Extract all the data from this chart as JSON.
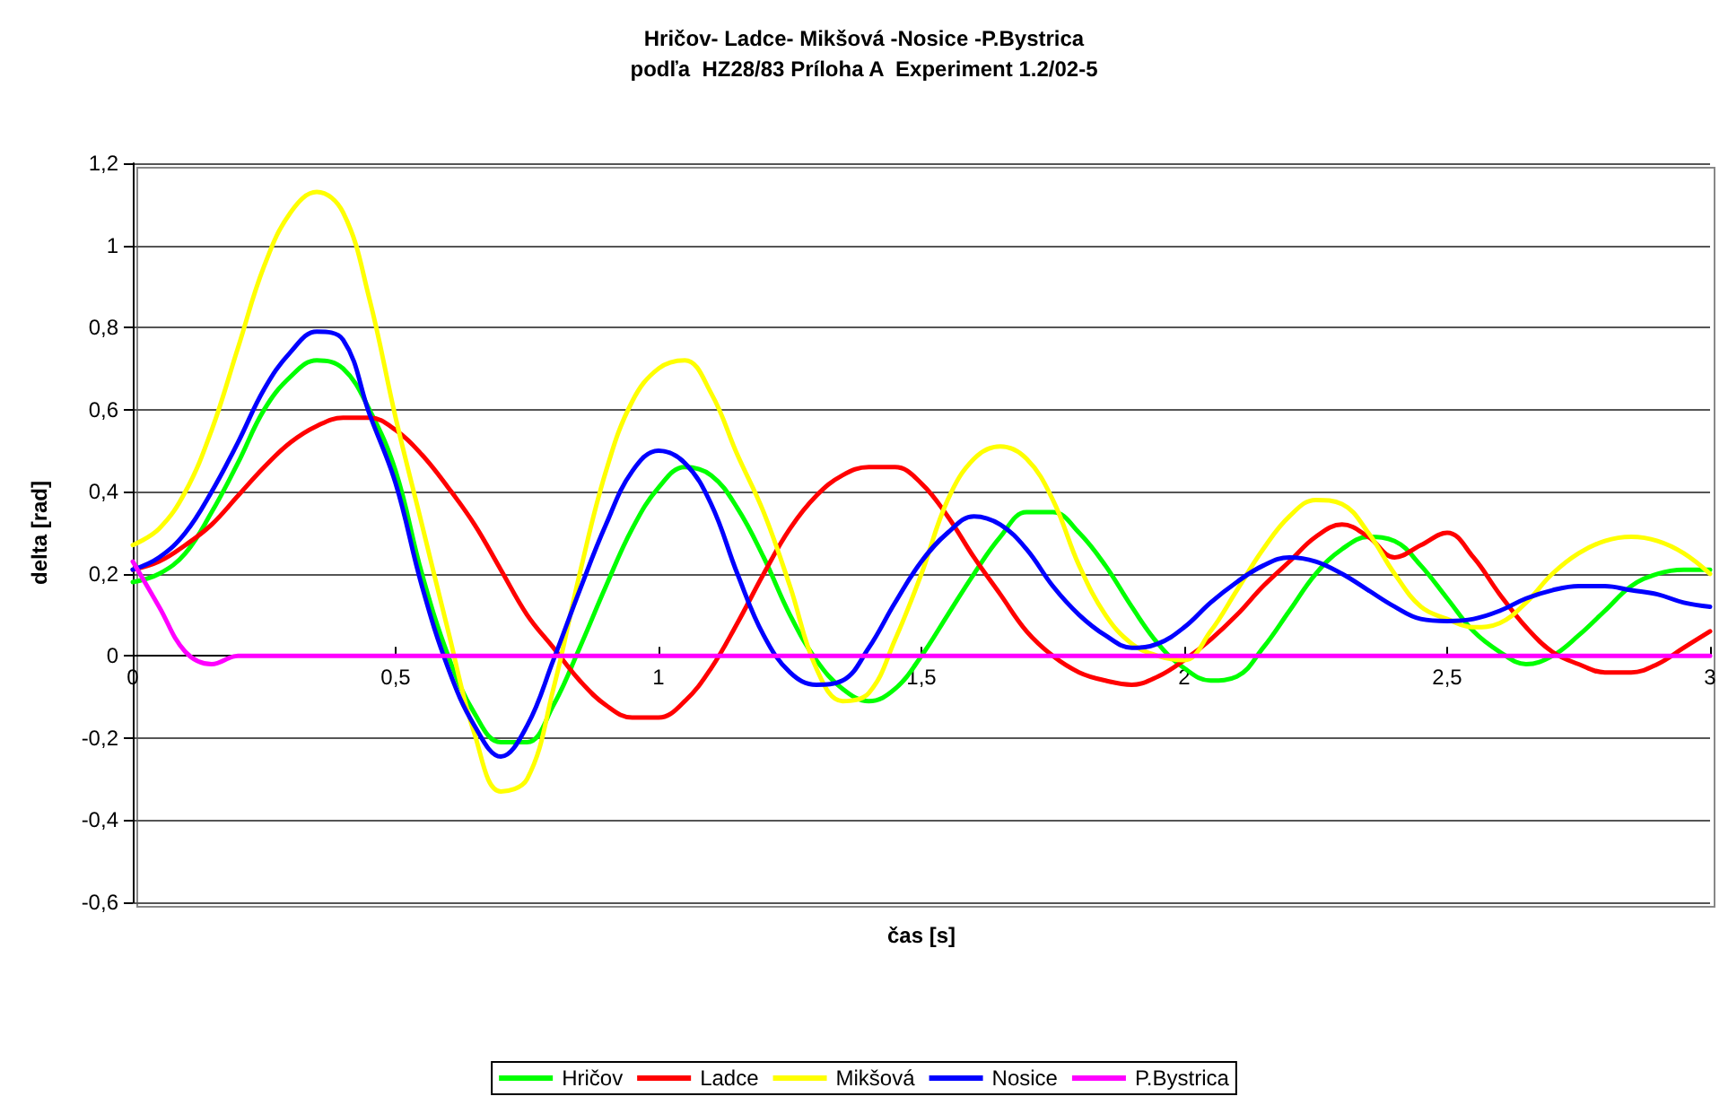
{
  "chart_data": {
    "type": "line",
    "title": "Hričov- Ladce- Mikšová -Nosice -P.Bystrica\npodľa  HZ28/83 Príloha A  Experiment 1.2/02-5",
    "xlabel": "čas [s]",
    "ylabel": "delta [rad]",
    "x": [
      0,
      0.05,
      0.1,
      0.15,
      0.2,
      0.25,
      0.3,
      0.35,
      0.4,
      0.45,
      0.5,
      0.55,
      0.6,
      0.65,
      0.7,
      0.75,
      0.8,
      0.85,
      0.9,
      0.95,
      1,
      1.05,
      1.1,
      1.15,
      1.2,
      1.25,
      1.3,
      1.35,
      1.4,
      1.45,
      1.5,
      1.55,
      1.6,
      1.65,
      1.7,
      1.75,
      1.8,
      1.85,
      1.9,
      1.95,
      2,
      2.05,
      2.1,
      2.15,
      2.2,
      2.25,
      2.3,
      2.35,
      2.4,
      2.45,
      2.5,
      2.55,
      2.6,
      2.65,
      2.7,
      2.75,
      2.8,
      2.85,
      2.9,
      2.95,
      3
    ],
    "series": [
      {
        "name": "Hričov",
        "color": "#00ff00",
        "values": [
          0.18,
          0.2,
          0.25,
          0.35,
          0.47,
          0.6,
          0.68,
          0.72,
          0.7,
          0.6,
          0.45,
          0.2,
          0.0,
          -0.14,
          -0.21,
          -0.21,
          -0.12,
          0.02,
          0.17,
          0.31,
          0.41,
          0.46,
          0.44,
          0.36,
          0.24,
          0.1,
          -0.01,
          -0.08,
          -0.11,
          -0.08,
          0.0,
          0.1,
          0.2,
          0.29,
          0.35,
          0.35,
          0.3,
          0.22,
          0.12,
          0.03,
          -0.03,
          -0.06,
          -0.05,
          0.02,
          0.11,
          0.2,
          0.26,
          0.29,
          0.28,
          0.22,
          0.14,
          0.06,
          0.01,
          -0.02,
          0.0,
          0.05,
          0.11,
          0.17,
          0.2,
          0.21,
          0.21
        ]
      },
      {
        "name": "Ladce",
        "color": "#ff0000",
        "values": [
          0.21,
          0.23,
          0.27,
          0.32,
          0.39,
          0.46,
          0.52,
          0.56,
          0.58,
          0.58,
          0.55,
          0.49,
          0.41,
          0.32,
          0.21,
          0.1,
          0.02,
          -0.06,
          -0.12,
          -0.15,
          -0.15,
          -0.11,
          -0.03,
          0.08,
          0.2,
          0.31,
          0.39,
          0.44,
          0.46,
          0.46,
          0.42,
          0.34,
          0.24,
          0.15,
          0.06,
          0.0,
          -0.04,
          -0.06,
          -0.07,
          -0.05,
          -0.01,
          0.04,
          0.1,
          0.17,
          0.23,
          0.29,
          0.32,
          0.29,
          0.24,
          0.27,
          0.3,
          0.24,
          0.15,
          0.07,
          0.01,
          -0.02,
          -0.04,
          -0.04,
          -0.02,
          0.02,
          0.06
        ]
      },
      {
        "name": "Mikšová",
        "color": "#ffff00",
        "values": [
          0.27,
          0.31,
          0.4,
          0.55,
          0.75,
          0.95,
          1.08,
          1.13,
          1.08,
          0.87,
          0.58,
          0.32,
          0.06,
          -0.19,
          -0.33,
          -0.3,
          -0.08,
          0.2,
          0.45,
          0.62,
          0.7,
          0.72,
          0.64,
          0.49,
          0.35,
          0.17,
          -0.03,
          -0.11,
          -0.09,
          0.04,
          0.2,
          0.38,
          0.48,
          0.51,
          0.48,
          0.38,
          0.22,
          0.1,
          0.03,
          0.0,
          -0.01,
          0.06,
          0.16,
          0.26,
          0.34,
          0.38,
          0.37,
          0.3,
          0.2,
          0.12,
          0.09,
          0.07,
          0.08,
          0.13,
          0.2,
          0.25,
          0.28,
          0.29,
          0.28,
          0.25,
          0.2
        ]
      },
      {
        "name": "Nosice",
        "color": "#0000ff",
        "values": [
          0.21,
          0.24,
          0.3,
          0.4,
          0.52,
          0.65,
          0.74,
          0.79,
          0.77,
          0.59,
          0.42,
          0.17,
          -0.03,
          -0.17,
          -0.245,
          -0.17,
          -0.01,
          0.16,
          0.32,
          0.45,
          0.5,
          0.47,
          0.37,
          0.2,
          0.05,
          -0.04,
          -0.07,
          -0.06,
          0.02,
          0.13,
          0.23,
          0.3,
          0.34,
          0.32,
          0.26,
          0.17,
          0.1,
          0.05,
          0.02,
          0.03,
          0.07,
          0.13,
          0.18,
          0.22,
          0.24,
          0.23,
          0.2,
          0.16,
          0.12,
          0.09,
          0.085,
          0.09,
          0.11,
          0.14,
          0.16,
          0.17,
          0.17,
          0.16,
          0.15,
          0.13,
          0.12
        ]
      },
      {
        "name": "P.Bystrica",
        "color": "#ff00ff",
        "values": [
          0.23,
          0.12,
          0.01,
          -0.02,
          0,
          0,
          0,
          0,
          0,
          0,
          0,
          0,
          0,
          0,
          0,
          0,
          0,
          0,
          0,
          0,
          0,
          0,
          0,
          0,
          0,
          0,
          0,
          0,
          0,
          0,
          0,
          0,
          0,
          0,
          0,
          0,
          0,
          0,
          0,
          0,
          0,
          0,
          0,
          0,
          0,
          0,
          0,
          0,
          0,
          0,
          0,
          0,
          0,
          0,
          0,
          0,
          0,
          0,
          0,
          0,
          0
        ]
      }
    ],
    "xlim": [
      0,
      3
    ],
    "xticks": [
      0,
      {
        "value": 0.5,
        "label": "0,5"
      },
      1,
      {
        "value": 1.5,
        "label": "1,5"
      },
      2,
      {
        "value": 2.5,
        "label": "2,5"
      },
      3
    ],
    "ylim": [
      -0.6,
      1.2
    ],
    "yticks": [
      {
        "value": -0.6,
        "label": "-0,6"
      },
      {
        "value": -0.4,
        "label": "-0,4"
      },
      {
        "value": -0.2,
        "label": "-0,2"
      },
      0,
      {
        "value": 0.2,
        "label": "0,2"
      },
      {
        "value": 0.4,
        "label": "0,4"
      },
      {
        "value": 0.6,
        "label": "0,6"
      },
      {
        "value": 0.8,
        "label": "0,8"
      },
      1,
      {
        "value": 1.2,
        "label": "1,2"
      }
    ],
    "grid": "y",
    "legend": "bottom",
    "marker": "none",
    "line_style": "solid"
  }
}
